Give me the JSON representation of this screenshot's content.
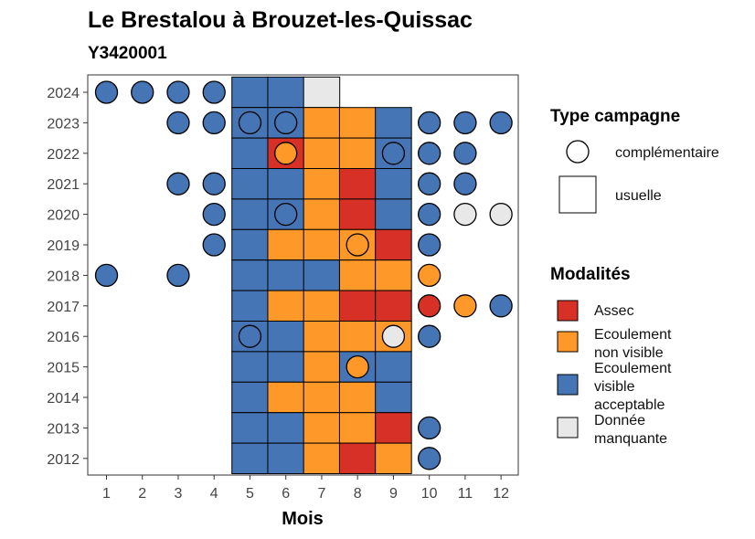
{
  "chart_data": {
    "type": "heatmap",
    "title": "Le Brestalou à Brouzet-les-Quissac",
    "subtitle": "Y3420001",
    "xlabel": "Mois",
    "x_categories": [
      "1",
      "2",
      "3",
      "4",
      "5",
      "6",
      "7",
      "8",
      "9",
      "10",
      "11",
      "12"
    ],
    "y_categories": [
      "2012",
      "2013",
      "2014",
      "2015",
      "2016",
      "2017",
      "2018",
      "2019",
      "2020",
      "2021",
      "2022",
      "2023",
      "2024"
    ],
    "grid": false,
    "legend_placement": "right",
    "modalites": [
      {
        "key": "A",
        "label_lines": [
          "Assec"
        ],
        "color": "#D73027"
      },
      {
        "key": "O",
        "label_lines": [
          "Ecoulement",
          "non visible"
        ],
        "color": "#FE9929"
      },
      {
        "key": "V",
        "label_lines": [
          "Ecoulement",
          "visible",
          "acceptable"
        ],
        "color": "#4575B4"
      },
      {
        "key": "M",
        "label_lines": [
          "Donnée",
          "manquante"
        ],
        "color": "#E8E8E8"
      }
    ],
    "campagne_types": [
      {
        "key": "complementaire",
        "label": "complémentaire",
        "shape": "circle"
      },
      {
        "key": "usuelle",
        "label": "usuelle",
        "shape": "square"
      }
    ],
    "legend_titles": {
      "campagne": "Type campagne",
      "modalites": "Modalités"
    },
    "observations": [
      {
        "year": "2024",
        "month": 1,
        "type": "complementaire",
        "value": "V"
      },
      {
        "year": "2024",
        "month": 2,
        "type": "complementaire",
        "value": "V"
      },
      {
        "year": "2024",
        "month": 3,
        "type": "complementaire",
        "value": "V"
      },
      {
        "year": "2024",
        "month": 4,
        "type": "complementaire",
        "value": "V"
      },
      {
        "year": "2024",
        "month": 5,
        "type": "usuelle",
        "value": "V"
      },
      {
        "year": "2024",
        "month": 6,
        "type": "usuelle",
        "value": "V"
      },
      {
        "year": "2024",
        "month": 7,
        "type": "usuelle",
        "value": "M"
      },
      {
        "year": "2023",
        "month": 3,
        "type": "complementaire",
        "value": "V"
      },
      {
        "year": "2023",
        "month": 4,
        "type": "complementaire",
        "value": "V"
      },
      {
        "year": "2023",
        "month": 5,
        "type": "usuelle",
        "value": "V"
      },
      {
        "year": "2023",
        "month": 5,
        "type": "complementaire",
        "value": "V"
      },
      {
        "year": "2023",
        "month": 6,
        "type": "usuelle",
        "value": "V"
      },
      {
        "year": "2023",
        "month": 6,
        "type": "complementaire",
        "value": "V"
      },
      {
        "year": "2023",
        "month": 7,
        "type": "usuelle",
        "value": "O"
      },
      {
        "year": "2023",
        "month": 8,
        "type": "usuelle",
        "value": "O"
      },
      {
        "year": "2023",
        "month": 9,
        "type": "usuelle",
        "value": "V"
      },
      {
        "year": "2023",
        "month": 10,
        "type": "complementaire",
        "value": "V"
      },
      {
        "year": "2023",
        "month": 11,
        "type": "complementaire",
        "value": "V"
      },
      {
        "year": "2023",
        "month": 12,
        "type": "complementaire",
        "value": "V"
      },
      {
        "year": "2022",
        "month": 5,
        "type": "usuelle",
        "value": "V"
      },
      {
        "year": "2022",
        "month": 6,
        "type": "usuelle",
        "value": "A"
      },
      {
        "year": "2022",
        "month": 6,
        "type": "complementaire",
        "value": "O"
      },
      {
        "year": "2022",
        "month": 7,
        "type": "usuelle",
        "value": "O"
      },
      {
        "year": "2022",
        "month": 8,
        "type": "usuelle",
        "value": "O"
      },
      {
        "year": "2022",
        "month": 9,
        "type": "usuelle",
        "value": "V"
      },
      {
        "year": "2022",
        "month": 9,
        "type": "complementaire",
        "value": "V"
      },
      {
        "year": "2022",
        "month": 10,
        "type": "complementaire",
        "value": "V"
      },
      {
        "year": "2022",
        "month": 11,
        "type": "complementaire",
        "value": "V"
      },
      {
        "year": "2021",
        "month": 3,
        "type": "complementaire",
        "value": "V"
      },
      {
        "year": "2021",
        "month": 4,
        "type": "complementaire",
        "value": "V"
      },
      {
        "year": "2021",
        "month": 5,
        "type": "usuelle",
        "value": "V"
      },
      {
        "year": "2021",
        "month": 6,
        "type": "usuelle",
        "value": "V"
      },
      {
        "year": "2021",
        "month": 7,
        "type": "usuelle",
        "value": "O"
      },
      {
        "year": "2021",
        "month": 8,
        "type": "usuelle",
        "value": "A"
      },
      {
        "year": "2021",
        "month": 9,
        "type": "usuelle",
        "value": "V"
      },
      {
        "year": "2021",
        "month": 10,
        "type": "complementaire",
        "value": "V"
      },
      {
        "year": "2021",
        "month": 11,
        "type": "complementaire",
        "value": "V"
      },
      {
        "year": "2020",
        "month": 4,
        "type": "complementaire",
        "value": "V"
      },
      {
        "year": "2020",
        "month": 5,
        "type": "usuelle",
        "value": "V"
      },
      {
        "year": "2020",
        "month": 6,
        "type": "usuelle",
        "value": "V"
      },
      {
        "year": "2020",
        "month": 6,
        "type": "complementaire",
        "value": "V"
      },
      {
        "year": "2020",
        "month": 7,
        "type": "usuelle",
        "value": "O"
      },
      {
        "year": "2020",
        "month": 8,
        "type": "usuelle",
        "value": "A"
      },
      {
        "year": "2020",
        "month": 9,
        "type": "usuelle",
        "value": "V"
      },
      {
        "year": "2020",
        "month": 10,
        "type": "complementaire",
        "value": "V"
      },
      {
        "year": "2020",
        "month": 11,
        "type": "complementaire",
        "value": "M"
      },
      {
        "year": "2020",
        "month": 12,
        "type": "complementaire",
        "value": "M"
      },
      {
        "year": "2019",
        "month": 4,
        "type": "complementaire",
        "value": "V"
      },
      {
        "year": "2019",
        "month": 5,
        "type": "usuelle",
        "value": "V"
      },
      {
        "year": "2019",
        "month": 6,
        "type": "usuelle",
        "value": "O"
      },
      {
        "year": "2019",
        "month": 7,
        "type": "usuelle",
        "value": "O"
      },
      {
        "year": "2019",
        "month": 8,
        "type": "usuelle",
        "value": "O"
      },
      {
        "year": "2019",
        "month": 8,
        "type": "complementaire",
        "value": "O"
      },
      {
        "year": "2019",
        "month": 9,
        "type": "usuelle",
        "value": "A"
      },
      {
        "year": "2019",
        "month": 10,
        "type": "complementaire",
        "value": "V"
      },
      {
        "year": "2018",
        "month": 1,
        "type": "complementaire",
        "value": "V"
      },
      {
        "year": "2018",
        "month": 3,
        "type": "complementaire",
        "value": "V"
      },
      {
        "year": "2018",
        "month": 5,
        "type": "usuelle",
        "value": "V"
      },
      {
        "year": "2018",
        "month": 6,
        "type": "usuelle",
        "value": "V"
      },
      {
        "year": "2018",
        "month": 7,
        "type": "usuelle",
        "value": "V"
      },
      {
        "year": "2018",
        "month": 8,
        "type": "usuelle",
        "value": "O"
      },
      {
        "year": "2018",
        "month": 9,
        "type": "usuelle",
        "value": "O"
      },
      {
        "year": "2018",
        "month": 10,
        "type": "complementaire",
        "value": "O"
      },
      {
        "year": "2017",
        "month": 5,
        "type": "usuelle",
        "value": "V"
      },
      {
        "year": "2017",
        "month": 6,
        "type": "usuelle",
        "value": "O"
      },
      {
        "year": "2017",
        "month": 7,
        "type": "usuelle",
        "value": "O"
      },
      {
        "year": "2017",
        "month": 8,
        "type": "usuelle",
        "value": "A"
      },
      {
        "year": "2017",
        "month": 9,
        "type": "usuelle",
        "value": "A"
      },
      {
        "year": "2017",
        "month": 10,
        "type": "complementaire",
        "value": "A"
      },
      {
        "year": "2017",
        "month": 11,
        "type": "complementaire",
        "value": "O"
      },
      {
        "year": "2017",
        "month": 12,
        "type": "complementaire",
        "value": "V"
      },
      {
        "year": "2016",
        "month": 5,
        "type": "usuelle",
        "value": "V"
      },
      {
        "year": "2016",
        "month": 5,
        "type": "complementaire",
        "value": "V"
      },
      {
        "year": "2016",
        "month": 6,
        "type": "usuelle",
        "value": "V"
      },
      {
        "year": "2016",
        "month": 7,
        "type": "usuelle",
        "value": "O"
      },
      {
        "year": "2016",
        "month": 8,
        "type": "usuelle",
        "value": "O"
      },
      {
        "year": "2016",
        "month": 9,
        "type": "usuelle",
        "value": "O"
      },
      {
        "year": "2016",
        "month": 9,
        "type": "complementaire",
        "value": "M"
      },
      {
        "year": "2016",
        "month": 10,
        "type": "complementaire",
        "value": "V"
      },
      {
        "year": "2015",
        "month": 5,
        "type": "usuelle",
        "value": "V"
      },
      {
        "year": "2015",
        "month": 6,
        "type": "usuelle",
        "value": "V"
      },
      {
        "year": "2015",
        "month": 7,
        "type": "usuelle",
        "value": "O"
      },
      {
        "year": "2015",
        "month": 8,
        "type": "usuelle",
        "value": "V"
      },
      {
        "year": "2015",
        "month": 8,
        "type": "complementaire",
        "value": "O"
      },
      {
        "year": "2015",
        "month": 9,
        "type": "usuelle",
        "value": "V"
      },
      {
        "year": "2014",
        "month": 5,
        "type": "usuelle",
        "value": "V"
      },
      {
        "year": "2014",
        "month": 6,
        "type": "usuelle",
        "value": "O"
      },
      {
        "year": "2014",
        "month": 7,
        "type": "usuelle",
        "value": "O"
      },
      {
        "year": "2014",
        "month": 8,
        "type": "usuelle",
        "value": "O"
      },
      {
        "year": "2014",
        "month": 9,
        "type": "usuelle",
        "value": "V"
      },
      {
        "year": "2013",
        "month": 5,
        "type": "usuelle",
        "value": "V"
      },
      {
        "year": "2013",
        "month": 6,
        "type": "usuelle",
        "value": "V"
      },
      {
        "year": "2013",
        "month": 7,
        "type": "usuelle",
        "value": "O"
      },
      {
        "year": "2013",
        "month": 8,
        "type": "usuelle",
        "value": "O"
      },
      {
        "year": "2013",
        "month": 9,
        "type": "usuelle",
        "value": "A"
      },
      {
        "year": "2013",
        "month": 10,
        "type": "complementaire",
        "value": "V"
      },
      {
        "year": "2012",
        "month": 5,
        "type": "usuelle",
        "value": "V"
      },
      {
        "year": "2012",
        "month": 6,
        "type": "usuelle",
        "value": "V"
      },
      {
        "year": "2012",
        "month": 7,
        "type": "usuelle",
        "value": "O"
      },
      {
        "year": "2012",
        "month": 8,
        "type": "usuelle",
        "value": "A"
      },
      {
        "year": "2012",
        "month": 9,
        "type": "usuelle",
        "value": "O"
      },
      {
        "year": "2012",
        "month": 10,
        "type": "complementaire",
        "value": "V"
      }
    ]
  }
}
